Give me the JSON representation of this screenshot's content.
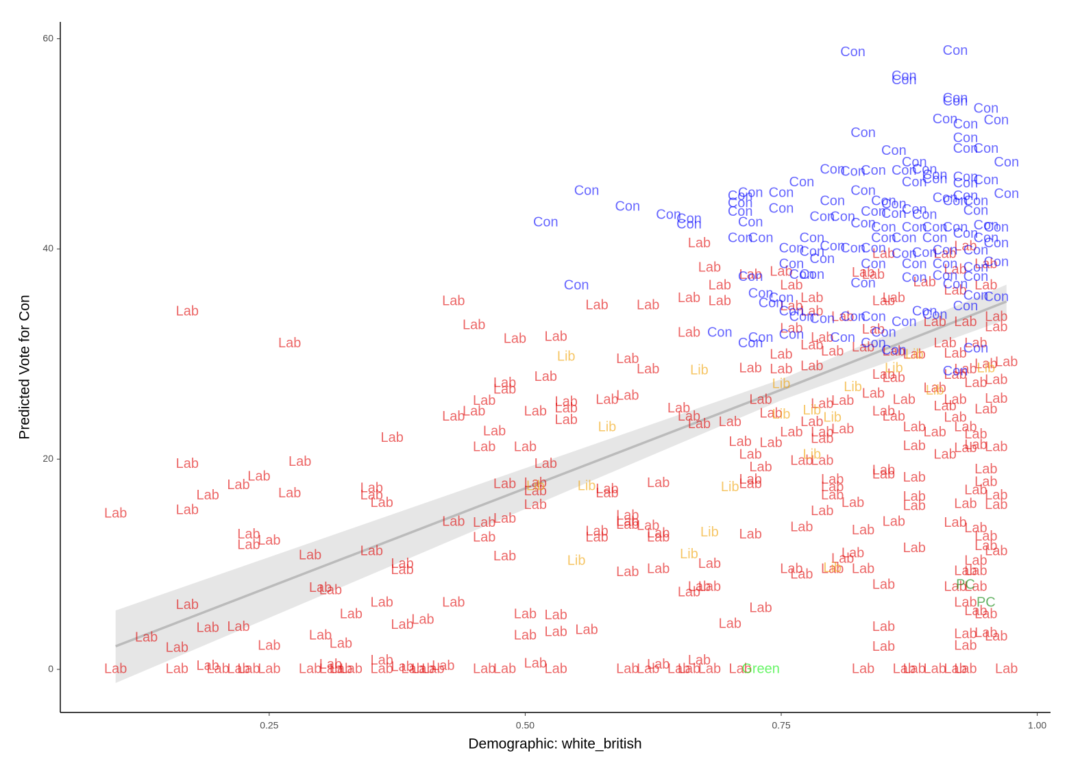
{
  "chart_data": {
    "type": "scatter",
    "x_label": "Demographic: white_british",
    "y_label": "Predicted Vote for Con",
    "xlim": [
      0.046,
      1.013
    ],
    "ylim": [
      -4.1,
      61.6
    ],
    "xticks": [
      {
        "value": 0.25,
        "label": "0.25"
      },
      {
        "value": 0.5,
        "label": "0.50"
      },
      {
        "value": 0.75,
        "label": "0.75"
      },
      {
        "value": 1,
        "label": "1.00"
      }
    ],
    "yticks": [
      0,
      20,
      40,
      60
    ],
    "grid": false,
    "opacity": 0.6,
    "trend": {
      "color": "#bbbbbb",
      "band_color": "#e6e6e6",
      "x": [
        0.1,
        0.75,
        0.97
      ],
      "y": [
        2.2,
        26.6,
        35
      ],
      "lower": [
        -1.3,
        25.6,
        33.3
      ],
      "upper": [
        5.6,
        27.6,
        36.6
      ]
    },
    "series": [
      {
        "name": "Lab",
        "color": "#e00000",
        "x": [
          0.1,
          0.17,
          0.17,
          0.27,
          0.17,
          0.19,
          0.22,
          0.24,
          0.28,
          0.27,
          0.35,
          0.35,
          0.36,
          0.37,
          0.43,
          0.45,
          0.43,
          0.45,
          0.49,
          0.53,
          0.48,
          0.48,
          0.52,
          0.46,
          0.47,
          0.46,
          0.5,
          0.52,
          0.51,
          0.54,
          0.54,
          0.54,
          0.58,
          0.6,
          0.6,
          0.62,
          0.57,
          0.62,
          0.66,
          0.69,
          0.66,
          0.72,
          0.75,
          0.73,
          0.74,
          0.65,
          0.66,
          0.67,
          0.7,
          0.71,
          0.74,
          0.76,
          0.78,
          0.79,
          0.72,
          0.73,
          0.72,
          0.72,
          0.77,
          0.79,
          0.8,
          0.8,
          0.8,
          0.79,
          0.82,
          0.77,
          0.72,
          0.63,
          0.58,
          0.58,
          0.51,
          0.51,
          0.51,
          0.48,
          0.43,
          0.46,
          0.46,
          0.48,
          0.35,
          0.23,
          0.23,
          0.25,
          0.29,
          0.38,
          0.38,
          0.48,
          0.3,
          0.31,
          0.17,
          0.13,
          0.16,
          0.19,
          0.22,
          0.25,
          0.3,
          0.32,
          0.33,
          0.36,
          0.38,
          0.4,
          0.43,
          0.5,
          0.53,
          0.5,
          0.53,
          0.56,
          0.36,
          0.1,
          0.16,
          0.19,
          0.2,
          0.22,
          0.23,
          0.25,
          0.29,
          0.31,
          0.31,
          0.32,
          0.33,
          0.36,
          0.38,
          0.39,
          0.4,
          0.41,
          0.42,
          0.46,
          0.48,
          0.51,
          0.53,
          0.6,
          0.62,
          0.63,
          0.65,
          0.66,
          0.68,
          0.67,
          0.71,
          0.57,
          0.57,
          0.6,
          0.6,
          0.6,
          0.62,
          0.63,
          0.63,
          0.66,
          0.67,
          0.68,
          0.68,
          0.6,
          0.63,
          0.7,
          0.73,
          0.85,
          0.85,
          0.85,
          0.83,
          0.81,
          0.8,
          0.76,
          0.77,
          0.82,
          0.83,
          0.86,
          0.88,
          0.88,
          0.88,
          0.88,
          0.85,
          0.85,
          0.88,
          0.88,
          0.9,
          0.91,
          0.85,
          0.86,
          0.87,
          0.9,
          0.91,
          0.92,
          0.92,
          0.93,
          0.94,
          0.94,
          0.93,
          0.96,
          0.95,
          0.96,
          0.96,
          0.94,
          0.93,
          0.92,
          0.97,
          0.88,
          0.86,
          0.85,
          0.86,
          0.83,
          0.8,
          0.78,
          0.79,
          0.84,
          0.81,
          0.79,
          0.79,
          0.81,
          0.78,
          0.75,
          0.76,
          0.76,
          0.78,
          0.78,
          0.81,
          0.84,
          0.85,
          0.86,
          0.84,
          0.9,
          0.93,
          0.96,
          0.96,
          0.94,
          0.95,
          0.92,
          0.93,
          0.95,
          0.91,
          0.92,
          0.95,
          0.95,
          0.96,
          0.96,
          0.94,
          0.93,
          0.92,
          0.94,
          0.95,
          0.95,
          0.96,
          0.94,
          0.93,
          0.94,
          0.92,
          0.94,
          0.93,
          0.94,
          0.95,
          0.93,
          0.95,
          0.96,
          0.93,
          0.83,
          0.87,
          0.9,
          0.92,
          0.93,
          0.97,
          0.88,
          0.67,
          0.68,
          0.69,
          0.72,
          0.75,
          0.76,
          0.85,
          0.83,
          0.89,
          0.91,
          0.92,
          0.95
        ],
        "values": [
          14.8,
          19.5,
          34,
          31,
          15.1,
          16.5,
          17.5,
          18.3,
          19.7,
          16.7,
          17.2,
          16.5,
          15.8,
          22,
          24,
          24.5,
          35,
          32.7,
          31.4,
          31.6,
          27.2,
          26.6,
          27.8,
          25.5,
          22.6,
          21.1,
          21.1,
          19.5,
          24.5,
          24.8,
          25.4,
          23.7,
          25.6,
          26,
          29.5,
          28.5,
          34.6,
          34.6,
          35.3,
          35,
          32,
          28.6,
          28.5,
          25.6,
          24.3,
          24.8,
          24,
          23.3,
          23.5,
          21.6,
          21.5,
          22.5,
          23.5,
          21.9,
          20.4,
          19.2,
          18,
          17.6,
          19.8,
          19.8,
          18,
          17.3,
          16.5,
          15,
          15.8,
          13.5,
          12.8,
          17.7,
          17.1,
          16.7,
          17.7,
          16.9,
          15.6,
          17.6,
          14,
          13.9,
          12.5,
          14.3,
          11.2,
          12.8,
          11.8,
          12.2,
          10.8,
          10,
          9.4,
          10.7,
          7.7,
          7.5,
          6.1,
          3,
          2,
          3.9,
          4,
          2.2,
          3.2,
          2.4,
          5.2,
          6.3,
          4.2,
          4.7,
          6.3,
          5.2,
          5.1,
          3.2,
          3.5,
          3.7,
          0.8,
          0,
          0,
          0.3,
          0,
          0,
          0,
          0,
          0,
          0,
          0.4,
          0,
          0,
          0,
          0.2,
          0,
          0,
          0,
          0.3,
          0,
          0,
          0.5,
          0,
          0,
          0,
          0.4,
          0,
          0,
          0,
          0.8,
          0,
          13.1,
          12.5,
          14.6,
          14,
          13.7,
          13.6,
          12.9,
          12.5,
          7.3,
          7.8,
          7.8,
          10,
          9.2,
          9.5,
          4.3,
          5.8,
          4,
          2.1,
          8,
          9.5,
          10.5,
          9.5,
          9.5,
          9,
          11,
          13.2,
          14,
          11.5,
          15.5,
          16.4,
          18.2,
          18.9,
          18.5,
          21.2,
          23,
          22.5,
          20.4,
          24.5,
          24,
          25.6,
          26.7,
          25,
          25.6,
          23.9,
          23,
          22.3,
          21.3,
          21,
          21.1,
          24.7,
          25.7,
          27.5,
          27.2,
          28.5,
          28,
          29.2,
          29.9,
          27.7,
          28,
          30.2,
          30.6,
          30.2,
          30.8,
          31.5,
          26.2,
          25.5,
          25.2,
          22.5,
          22.8,
          28.8,
          29.9,
          32.4,
          34.5,
          34,
          35.3,
          33.5,
          37.5,
          35,
          35.3,
          32.3,
          33,
          33,
          33.5,
          32.5,
          31,
          29,
          38,
          40.2,
          38.5,
          31,
          30,
          19,
          17.8,
          16.5,
          15.6,
          17,
          15.7,
          13.9,
          13.4,
          12.6,
          11.7,
          11.2,
          10.3,
          9.3,
          9.3,
          7.8,
          7.8,
          6.3,
          5.5,
          5.2,
          3.3,
          3.4,
          3.1,
          2.2,
          0,
          0,
          0,
          0,
          0,
          0,
          0,
          40.5,
          38.2,
          36.5,
          37.5,
          37.8,
          36.5,
          39.5,
          37.7,
          36.8,
          39.5,
          36,
          36.5
        ]
      },
      {
        "name": "Con",
        "color": "#0000ff",
        "x": [
          0.82,
          0.92,
          0.87,
          0.87,
          0.92,
          0.92,
          0.95,
          0.91,
          0.93,
          0.96,
          0.93,
          0.93,
          0.95,
          0.83,
          0.86,
          0.88,
          0.89,
          0.9,
          0.97,
          0.8,
          0.82,
          0.84,
          0.87,
          0.9,
          0.93,
          0.93,
          0.95,
          0.88,
          0.77,
          0.75,
          0.72,
          0.71,
          0.71,
          0.56,
          0.6,
          0.64,
          0.66,
          0.66,
          0.71,
          0.72,
          0.75,
          0.8,
          0.79,
          0.81,
          0.83,
          0.85,
          0.84,
          0.86,
          0.86,
          0.88,
          0.89,
          0.91,
          0.92,
          0.93,
          0.94,
          0.97,
          0.94,
          0.95,
          0.92,
          0.9,
          0.88,
          0.85,
          0.83,
          0.85,
          0.87,
          0.9,
          0.93,
          0.95,
          0.96,
          0.52,
          0.71,
          0.73,
          0.78,
          0.76,
          0.78,
          0.8,
          0.82,
          0.84,
          0.87,
          0.89,
          0.91,
          0.94,
          0.96,
          0.76,
          0.79,
          0.84,
          0.88,
          0.91,
          0.94,
          0.96,
          0.72,
          0.77,
          0.78,
          0.83,
          0.88,
          0.91,
          0.92,
          0.94,
          0.55,
          0.73,
          0.74,
          0.75,
          0.76,
          0.77,
          0.79,
          0.82,
          0.84,
          0.87,
          0.89,
          0.9,
          0.93,
          0.94,
          0.96,
          0.69,
          0.72,
          0.73,
          0.76,
          0.81,
          0.85,
          0.84,
          0.86,
          0.92,
          0.94
        ],
        "values": [
          58.7,
          58.8,
          56.4,
          56,
          54.3,
          54,
          53.3,
          52.3,
          51.8,
          52.2,
          50.5,
          49.5,
          49.5,
          51,
          49.3,
          48.2,
          47.5,
          47,
          48.2,
          47.5,
          47.3,
          47.4,
          47.4,
          46.6,
          46.8,
          46.2,
          46.5,
          46.3,
          46.3,
          45.3,
          45.3,
          45,
          44.3,
          45.5,
          44,
          43.2,
          42.8,
          42.3,
          43.5,
          42.5,
          43.8,
          44.5,
          43,
          43,
          45.5,
          44.5,
          43.5,
          44.2,
          43.3,
          43.7,
          43.2,
          44.8,
          44.5,
          45,
          44.5,
          45.2,
          43.6,
          42.2,
          42,
          42,
          42,
          42,
          42.4,
          41,
          41,
          41,
          41.4,
          41,
          42,
          42.5,
          41,
          41,
          41,
          40,
          39.7,
          40.2,
          40,
          40,
          39.5,
          39.6,
          39.8,
          39.8,
          40.5,
          38.5,
          39,
          38.5,
          38.5,
          38.5,
          38.2,
          38.7,
          37.3,
          37.5,
          37.5,
          36.7,
          37.2,
          37.4,
          36.6,
          37.3,
          36.5,
          35.7,
          34.8,
          35.3,
          34,
          33.5,
          33.3,
          33.5,
          33.5,
          33,
          34,
          33.7,
          34.5,
          35.5,
          35.4,
          32,
          31,
          31.5,
          31.8,
          31.5,
          32,
          31,
          30.3,
          28.3,
          30.5
        ]
      },
      {
        "name": "Lib",
        "color": "#f0a000",
        "x": [
          0.54,
          0.67,
          0.58,
          0.75,
          0.78,
          0.75,
          0.8,
          0.82,
          0.86,
          0.88,
          0.9,
          0.78,
          0.7,
          0.56,
          0.51,
          0.68,
          0.55,
          0.66,
          0.8,
          0.95
        ],
        "values": [
          29.7,
          28.4,
          23,
          27.1,
          24.6,
          24.2,
          23.9,
          26.8,
          28.6,
          29.9,
          26.5,
          20.4,
          17.3,
          17.4,
          17.4,
          13,
          10.3,
          10.9,
          9.6,
          28.6
        ]
      },
      {
        "name": "PC",
        "color": "#008000",
        "x": [
          0.93,
          0.95
        ],
        "values": [
          8,
          6.3
        ]
      },
      {
        "name": "Green",
        "color": "#00ee00",
        "x": [
          0.73
        ],
        "values": [
          0
        ]
      }
    ]
  }
}
